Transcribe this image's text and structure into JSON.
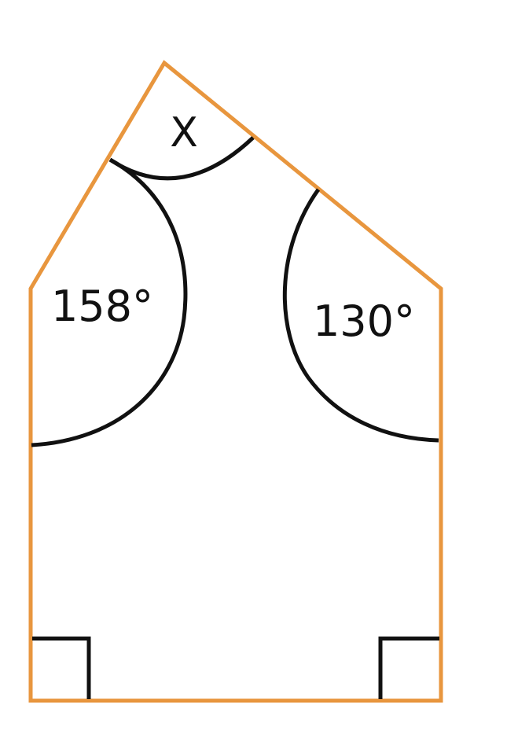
{
  "diagram": {
    "shape": "pentagon",
    "colors": {
      "outline": "#E8963E",
      "arc": "#111111",
      "text": "#111111",
      "background": "#FFFFFF"
    },
    "angles": {
      "top": {
        "label": "X"
      },
      "upper_left": {
        "label": "158°"
      },
      "upper_right": {
        "label": "130°"
      },
      "bottom_left": {
        "marker": "right-angle"
      },
      "bottom_right": {
        "marker": "right-angle"
      }
    }
  }
}
